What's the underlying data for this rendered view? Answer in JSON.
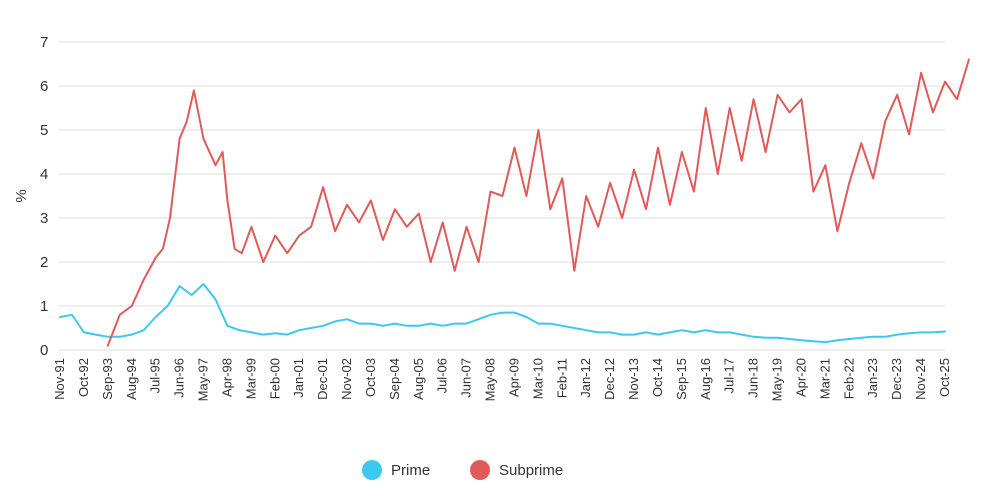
{
  "chart_data": {
    "type": "line",
    "title": "",
    "xlabel": "",
    "ylabel": "%",
    "ylim": [
      0,
      7
    ],
    "yticks": [
      "0",
      "1",
      "2",
      "3",
      "4",
      "5",
      "6",
      "7"
    ],
    "grid": true,
    "legend": "bottom-center",
    "x_start": "Nov-91",
    "x_end": "Oct-25",
    "categories": [
      "Nov-91",
      "Oct-92",
      "Sep-93",
      "Aug-94",
      "Jul-95",
      "Jun-96",
      "May-97",
      "Apr-98",
      "Mar-99",
      "Feb-00",
      "Jan-01",
      "Dec-01",
      "Nov-02",
      "Oct-03",
      "Sep-04",
      "Aug-05",
      "Jul-06",
      "Jun-07",
      "May-08",
      "Apr-09",
      "Mar-10",
      "Feb-11",
      "Jan-12",
      "Dec-12",
      "Nov-13",
      "Oct-14",
      "Sep-15",
      "Aug-16",
      "Jul-17",
      "Jun-18",
      "May-19",
      "Apr-20",
      "Mar-21",
      "Feb-22",
      "Jan-23",
      "Dec-23",
      "Nov-24",
      "Oct-25"
    ],
    "series": [
      {
        "name": "Prime",
        "color": "#3cc8ef",
        "points": [
          [
            0,
            0.75
          ],
          [
            0.5,
            0.8
          ],
          [
            1,
            0.4
          ],
          [
            1.5,
            0.35
          ],
          [
            2,
            0.3
          ],
          [
            2.5,
            0.3
          ],
          [
            3,
            0.35
          ],
          [
            3.5,
            0.45
          ],
          [
            4,
            0.75
          ],
          [
            4.5,
            1.0
          ],
          [
            5,
            1.45
          ],
          [
            5.5,
            1.25
          ],
          [
            6,
            1.5
          ],
          [
            6.5,
            1.15
          ],
          [
            7,
            0.55
          ],
          [
            7.5,
            0.45
          ],
          [
            8,
            0.4
          ],
          [
            8.5,
            0.35
          ],
          [
            9,
            0.38
          ],
          [
            9.5,
            0.35
          ],
          [
            10,
            0.45
          ],
          [
            10.5,
            0.5
          ],
          [
            11,
            0.55
          ],
          [
            11.5,
            0.65
          ],
          [
            12,
            0.7
          ],
          [
            12.5,
            0.6
          ],
          [
            13,
            0.6
          ],
          [
            13.5,
            0.55
          ],
          [
            14,
            0.6
          ],
          [
            14.5,
            0.55
          ],
          [
            15,
            0.55
          ],
          [
            15.5,
            0.6
          ],
          [
            16,
            0.55
          ],
          [
            16.5,
            0.6
          ],
          [
            17,
            0.6
          ],
          [
            17.5,
            0.7
          ],
          [
            18,
            0.8
          ],
          [
            18.5,
            0.85
          ],
          [
            19,
            0.85
          ],
          [
            19.5,
            0.75
          ],
          [
            20,
            0.6
          ],
          [
            20.5,
            0.6
          ],
          [
            21,
            0.55
          ],
          [
            21.5,
            0.5
          ],
          [
            22,
            0.45
          ],
          [
            22.5,
            0.4
          ],
          [
            23,
            0.4
          ],
          [
            23.5,
            0.35
          ],
          [
            24,
            0.35
          ],
          [
            24.5,
            0.4
          ],
          [
            25,
            0.35
          ],
          [
            25.5,
            0.4
          ],
          [
            26,
            0.45
          ],
          [
            26.5,
            0.4
          ],
          [
            27,
            0.45
          ],
          [
            27.5,
            0.4
          ],
          [
            28,
            0.4
          ],
          [
            28.5,
            0.35
          ],
          [
            29,
            0.3
          ],
          [
            29.5,
            0.28
          ],
          [
            30,
            0.28
          ],
          [
            30.5,
            0.25
          ],
          [
            31,
            0.22
          ],
          [
            31.5,
            0.2
          ],
          [
            32,
            0.18
          ],
          [
            32.5,
            0.22
          ],
          [
            33,
            0.25
          ],
          [
            33.5,
            0.28
          ],
          [
            34,
            0.3
          ],
          [
            34.5,
            0.3
          ],
          [
            35,
            0.35
          ],
          [
            35.5,
            0.38
          ],
          [
            36,
            0.4
          ],
          [
            36.5,
            0.4
          ],
          [
            37,
            0.42
          ]
        ]
      },
      {
        "name": "Subprime",
        "color": "#e05a5a",
        "points": [
          [
            2,
            0.1
          ],
          [
            2.5,
            0.8
          ],
          [
            3,
            1.0
          ],
          [
            3.5,
            1.6
          ],
          [
            4,
            2.1
          ],
          [
            4.3,
            2.3
          ],
          [
            4.6,
            3.0
          ],
          [
            5,
            4.8
          ],
          [
            5.3,
            5.2
          ],
          [
            5.6,
            5.9
          ],
          [
            6,
            4.8
          ],
          [
            6.5,
            4.2
          ],
          [
            6.8,
            4.5
          ],
          [
            7,
            3.4
          ],
          [
            7.3,
            2.3
          ],
          [
            7.6,
            2.2
          ],
          [
            8,
            2.8
          ],
          [
            8.5,
            2.0
          ],
          [
            9,
            2.6
          ],
          [
            9.5,
            2.2
          ],
          [
            10,
            2.6
          ],
          [
            10.5,
            2.8
          ],
          [
            11,
            3.7
          ],
          [
            11.5,
            2.7
          ],
          [
            12,
            3.3
          ],
          [
            12.5,
            2.9
          ],
          [
            13,
            3.4
          ],
          [
            13.5,
            2.5
          ],
          [
            14,
            3.2
          ],
          [
            14.5,
            2.8
          ],
          [
            15,
            3.1
          ],
          [
            15.5,
            2.0
          ],
          [
            16,
            2.9
          ],
          [
            16.5,
            1.8
          ],
          [
            17,
            2.8
          ],
          [
            17.5,
            2.0
          ],
          [
            18,
            3.6
          ],
          [
            18.5,
            3.5
          ],
          [
            19,
            4.6
          ],
          [
            19.5,
            3.5
          ],
          [
            20,
            5.0
          ],
          [
            20.5,
            3.2
          ],
          [
            21,
            3.9
          ],
          [
            21.5,
            1.8
          ],
          [
            22,
            3.5
          ],
          [
            22.5,
            2.8
          ],
          [
            23,
            3.8
          ],
          [
            23.5,
            3.0
          ],
          [
            24,
            4.1
          ],
          [
            24.5,
            3.2
          ],
          [
            25,
            4.6
          ],
          [
            25.5,
            3.3
          ],
          [
            26,
            4.5
          ],
          [
            26.5,
            3.6
          ],
          [
            27,
            5.5
          ],
          [
            27.5,
            4.0
          ],
          [
            28,
            5.5
          ],
          [
            28.5,
            4.3
          ],
          [
            29,
            5.7
          ],
          [
            29.5,
            4.5
          ],
          [
            30,
            5.8
          ],
          [
            30.5,
            5.4
          ],
          [
            31,
            5.7
          ],
          [
            31.5,
            3.6
          ],
          [
            32,
            4.2
          ],
          [
            32.5,
            2.7
          ],
          [
            33,
            3.8
          ],
          [
            33.5,
            4.7
          ],
          [
            34,
            3.9
          ],
          [
            34.5,
            5.2
          ],
          [
            35,
            5.8
          ],
          [
            35.5,
            4.9
          ],
          [
            36,
            6.3
          ],
          [
            36.5,
            5.4
          ],
          [
            37,
            6.1
          ],
          [
            37.5,
            5.7
          ],
          [
            38,
            6.6
          ]
        ]
      }
    ]
  }
}
